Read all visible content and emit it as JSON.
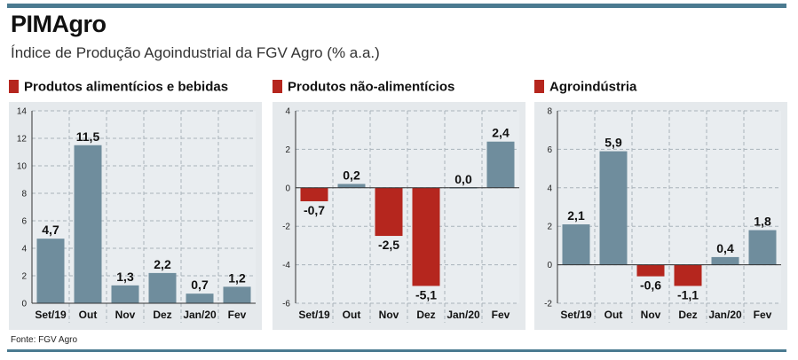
{
  "header": {
    "title": "PIMAgro",
    "subtitle": "Índice de Produção Agoindustrial da FGV Agro (% a.a.)"
  },
  "source": "Fonte: FGV Agro",
  "colors": {
    "positive": "#6f8d9d",
    "negative": "#b5261e",
    "accent": "#4a7a90",
    "panel_bg": "#e5e9ec"
  },
  "chart_data": [
    {
      "type": "bar",
      "title": "Produtos alimentícios e bebidas",
      "categories": [
        "Set/19",
        "Out",
        "Nov",
        "Dez",
        "Jan/20",
        "Fev"
      ],
      "values": [
        4.7,
        11.5,
        1.3,
        2.2,
        0.7,
        1.2
      ],
      "value_labels": [
        "4,7",
        "11,5",
        "1,3",
        "2,2",
        "0,7",
        "1,2"
      ],
      "yticks": [
        "0",
        "2",
        "4",
        "6",
        "8",
        "10",
        "12",
        "14"
      ],
      "ylim": [
        0,
        14
      ],
      "grid": true
    },
    {
      "type": "bar",
      "title": "Produtos não-alimentícios",
      "categories": [
        "Set/19",
        "Out",
        "Nov",
        "Dez",
        "Jan/20",
        "Fev"
      ],
      "values": [
        -0.7,
        0.2,
        -2.5,
        -5.1,
        0.0,
        2.4
      ],
      "value_labels": [
        "-0,7",
        "0,2",
        "-2,5",
        "-5,1",
        "0,0",
        "2,4"
      ],
      "yticks": [
        "-6",
        "-4",
        "-2",
        "0",
        "2",
        "4"
      ],
      "ylim": [
        -6,
        4
      ],
      "grid": true
    },
    {
      "type": "bar",
      "title": "Agroindústria",
      "categories": [
        "Set/19",
        "Out",
        "Nov",
        "Dez",
        "Jan/20",
        "Fev"
      ],
      "values": [
        2.1,
        5.9,
        -0.6,
        -1.1,
        0.4,
        1.8
      ],
      "value_labels": [
        "2,1",
        "5,9",
        "-0,6",
        "-1,1",
        "0,4",
        "1,8"
      ],
      "yticks": [
        "-2",
        "0",
        "2",
        "4",
        "6",
        "8"
      ],
      "ylim": [
        -2,
        8
      ],
      "grid": true
    }
  ]
}
